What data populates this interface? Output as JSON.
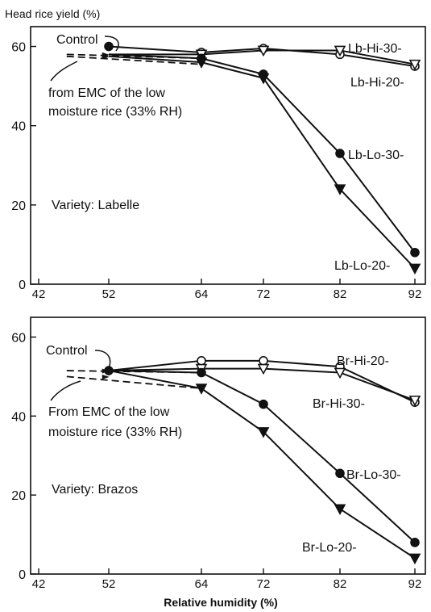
{
  "figure": {
    "ylabel": "Head rice yield (%)",
    "xlabel": "Relative humidity (%)"
  },
  "chart_data": [
    {
      "type": "line",
      "title": "",
      "xlabel": "Relative humidity (%)",
      "ylabel": "Head rice yield (%)",
      "xlim": [
        42,
        92
      ],
      "ylim": [
        0,
        65
      ],
      "x_ticks": [
        42,
        52,
        64,
        72,
        82,
        92
      ],
      "y_ticks": [
        0,
        20,
        40,
        60
      ],
      "variety_label": "Variety: Labelle",
      "annotations": {
        "control": "Control",
        "emc_line1": "from EMC of the low",
        "emc_line2": "moisture rice (33% RH)"
      },
      "control_point": {
        "x": 52,
        "y": 60
      },
      "series": [
        {
          "name": "Lb-Hi-30-",
          "marker": "open-circle",
          "x": [
            52,
            64,
            72,
            82,
            92
          ],
          "y": [
            60,
            58.5,
            59.5,
            58,
            55
          ]
        },
        {
          "name": "Lb-Hi-20-",
          "marker": "open-triangle",
          "x": [
            52,
            64,
            72,
            82,
            92
          ],
          "y": [
            58,
            58,
            59,
            59,
            55.5
          ]
        },
        {
          "name": "Lb-Lo-30-",
          "marker": "filled-circle",
          "x": [
            52,
            64,
            72,
            82,
            92
          ],
          "y": [
            58,
            57,
            53,
            33,
            8
          ]
        },
        {
          "name": "Lb-Lo-20-",
          "marker": "filled-triangle",
          "x": [
            52,
            64,
            72,
            82,
            92
          ],
          "y": [
            57.5,
            56,
            52,
            24,
            4
          ]
        }
      ],
      "dashed_lines": [
        {
          "x": [
            46,
            64
          ],
          "y": [
            58,
            57
          ]
        },
        {
          "x": [
            46,
            64
          ],
          "y": [
            57.5,
            55.5
          ]
        }
      ]
    },
    {
      "type": "line",
      "title": "",
      "xlabel": "Relative humidity (%)",
      "ylabel": "",
      "xlim": [
        42,
        92
      ],
      "ylim": [
        0,
        65
      ],
      "x_ticks": [
        42,
        52,
        64,
        72,
        82,
        92
      ],
      "y_ticks": [
        0,
        20,
        40,
        60
      ],
      "variety_label": "Variety: Brazos",
      "annotations": {
        "control": "Control",
        "emc_line1": "From EMC of the low",
        "emc_line2": "moisture rice (33% RH)"
      },
      "control_point": {
        "x": 52,
        "y": 51.5
      },
      "series": [
        {
          "name": "Br-Hi-20-",
          "marker": "open-circle",
          "x": [
            52,
            64,
            72,
            82,
            92
          ],
          "y": [
            51.5,
            54,
            54,
            52.5,
            43.5
          ]
        },
        {
          "name": "Br-Hi-30-",
          "marker": "open-triangle",
          "x": [
            52,
            64,
            72,
            82,
            92
          ],
          "y": [
            51.5,
            52,
            52,
            51,
            44
          ]
        },
        {
          "name": "Br-Lo-30-",
          "marker": "filled-circle",
          "x": [
            52,
            64,
            72,
            82,
            92
          ],
          "y": [
            51.5,
            51,
            43,
            25.5,
            8
          ]
        },
        {
          "name": "Br-Lo-20-",
          "marker": "filled-triangle",
          "x": [
            52,
            64,
            72,
            82,
            92
          ],
          "y": [
            51.5,
            47,
            36,
            16.5,
            4
          ]
        }
      ],
      "dashed_lines": [
        {
          "x": [
            46,
            64
          ],
          "y": [
            51.5,
            51
          ]
        },
        {
          "x": [
            46,
            64
          ],
          "y": [
            50,
            47
          ]
        }
      ]
    }
  ]
}
